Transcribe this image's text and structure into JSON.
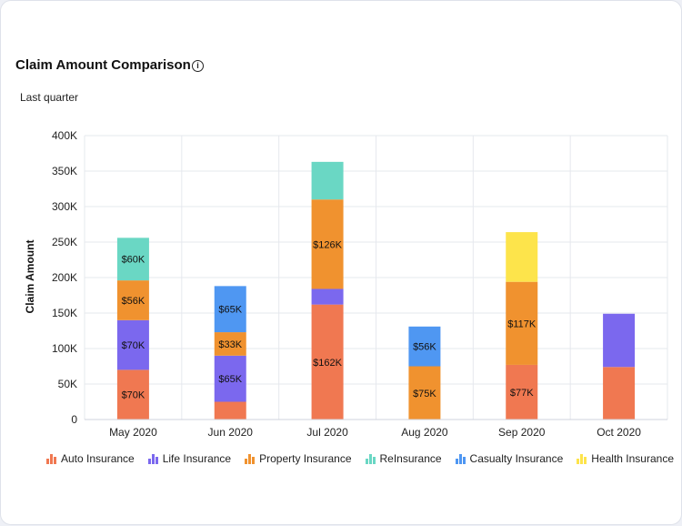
{
  "header": {
    "title": "Claim Amount Comparison",
    "info_icon": "info-circle-icon",
    "subtitle": "Last quarter"
  },
  "chart_data": {
    "type": "bar",
    "stacked": true,
    "categories": [
      "May 2020",
      "Jun 2020",
      "Jul 2020",
      "Aug 2020",
      "Sep 2020",
      "Oct 2020"
    ],
    "ylabel": "Claim Amount",
    "ylim": [
      0,
      400000
    ],
    "yticks": [
      0,
      50000,
      100000,
      150000,
      200000,
      250000,
      300000,
      350000,
      400000
    ],
    "ytick_labels": [
      "0",
      "50K",
      "100K",
      "150K",
      "200K",
      "250K",
      "300K",
      "350K",
      "400K"
    ],
    "grid": true,
    "legend_position": "bottom",
    "series": [
      {
        "name": "Auto Insurance",
        "color": "#f07851",
        "values": [
          70000,
          25000,
          162000,
          0,
          77000,
          74000
        ],
        "labels": [
          "$70K",
          "",
          "$162K",
          "",
          "$77K",
          ""
        ]
      },
      {
        "name": "Life Insurance",
        "color": "#7b68ee",
        "values": [
          70000,
          65000,
          22000,
          0,
          0,
          75000
        ],
        "labels": [
          "$70K",
          "$65K",
          "",
          "",
          "",
          ""
        ]
      },
      {
        "name": "Property Insurance",
        "color": "#f0922f",
        "values": [
          56000,
          33000,
          126000,
          75000,
          117000,
          0
        ],
        "labels": [
          "$56K",
          "$33K",
          "$126K",
          "$75K",
          "$117K",
          ""
        ]
      },
      {
        "name": "ReInsurance",
        "color": "#6ad7c4",
        "values": [
          60000,
          0,
          53000,
          0,
          0,
          0
        ],
        "labels": [
          "$60K",
          "",
          "",
          "",
          "",
          ""
        ]
      },
      {
        "name": "Casualty Insurance",
        "color": "#4f97f2",
        "values": [
          0,
          65000,
          0,
          56000,
          0,
          0
        ],
        "labels": [
          "",
          "$65K",
          "",
          "$56K",
          "",
          ""
        ]
      },
      {
        "name": "Health Insurance",
        "color": "#fde44b",
        "values": [
          0,
          0,
          0,
          0,
          70000,
          0
        ],
        "labels": [
          "",
          "",
          "",
          "",
          "",
          ""
        ]
      }
    ]
  }
}
